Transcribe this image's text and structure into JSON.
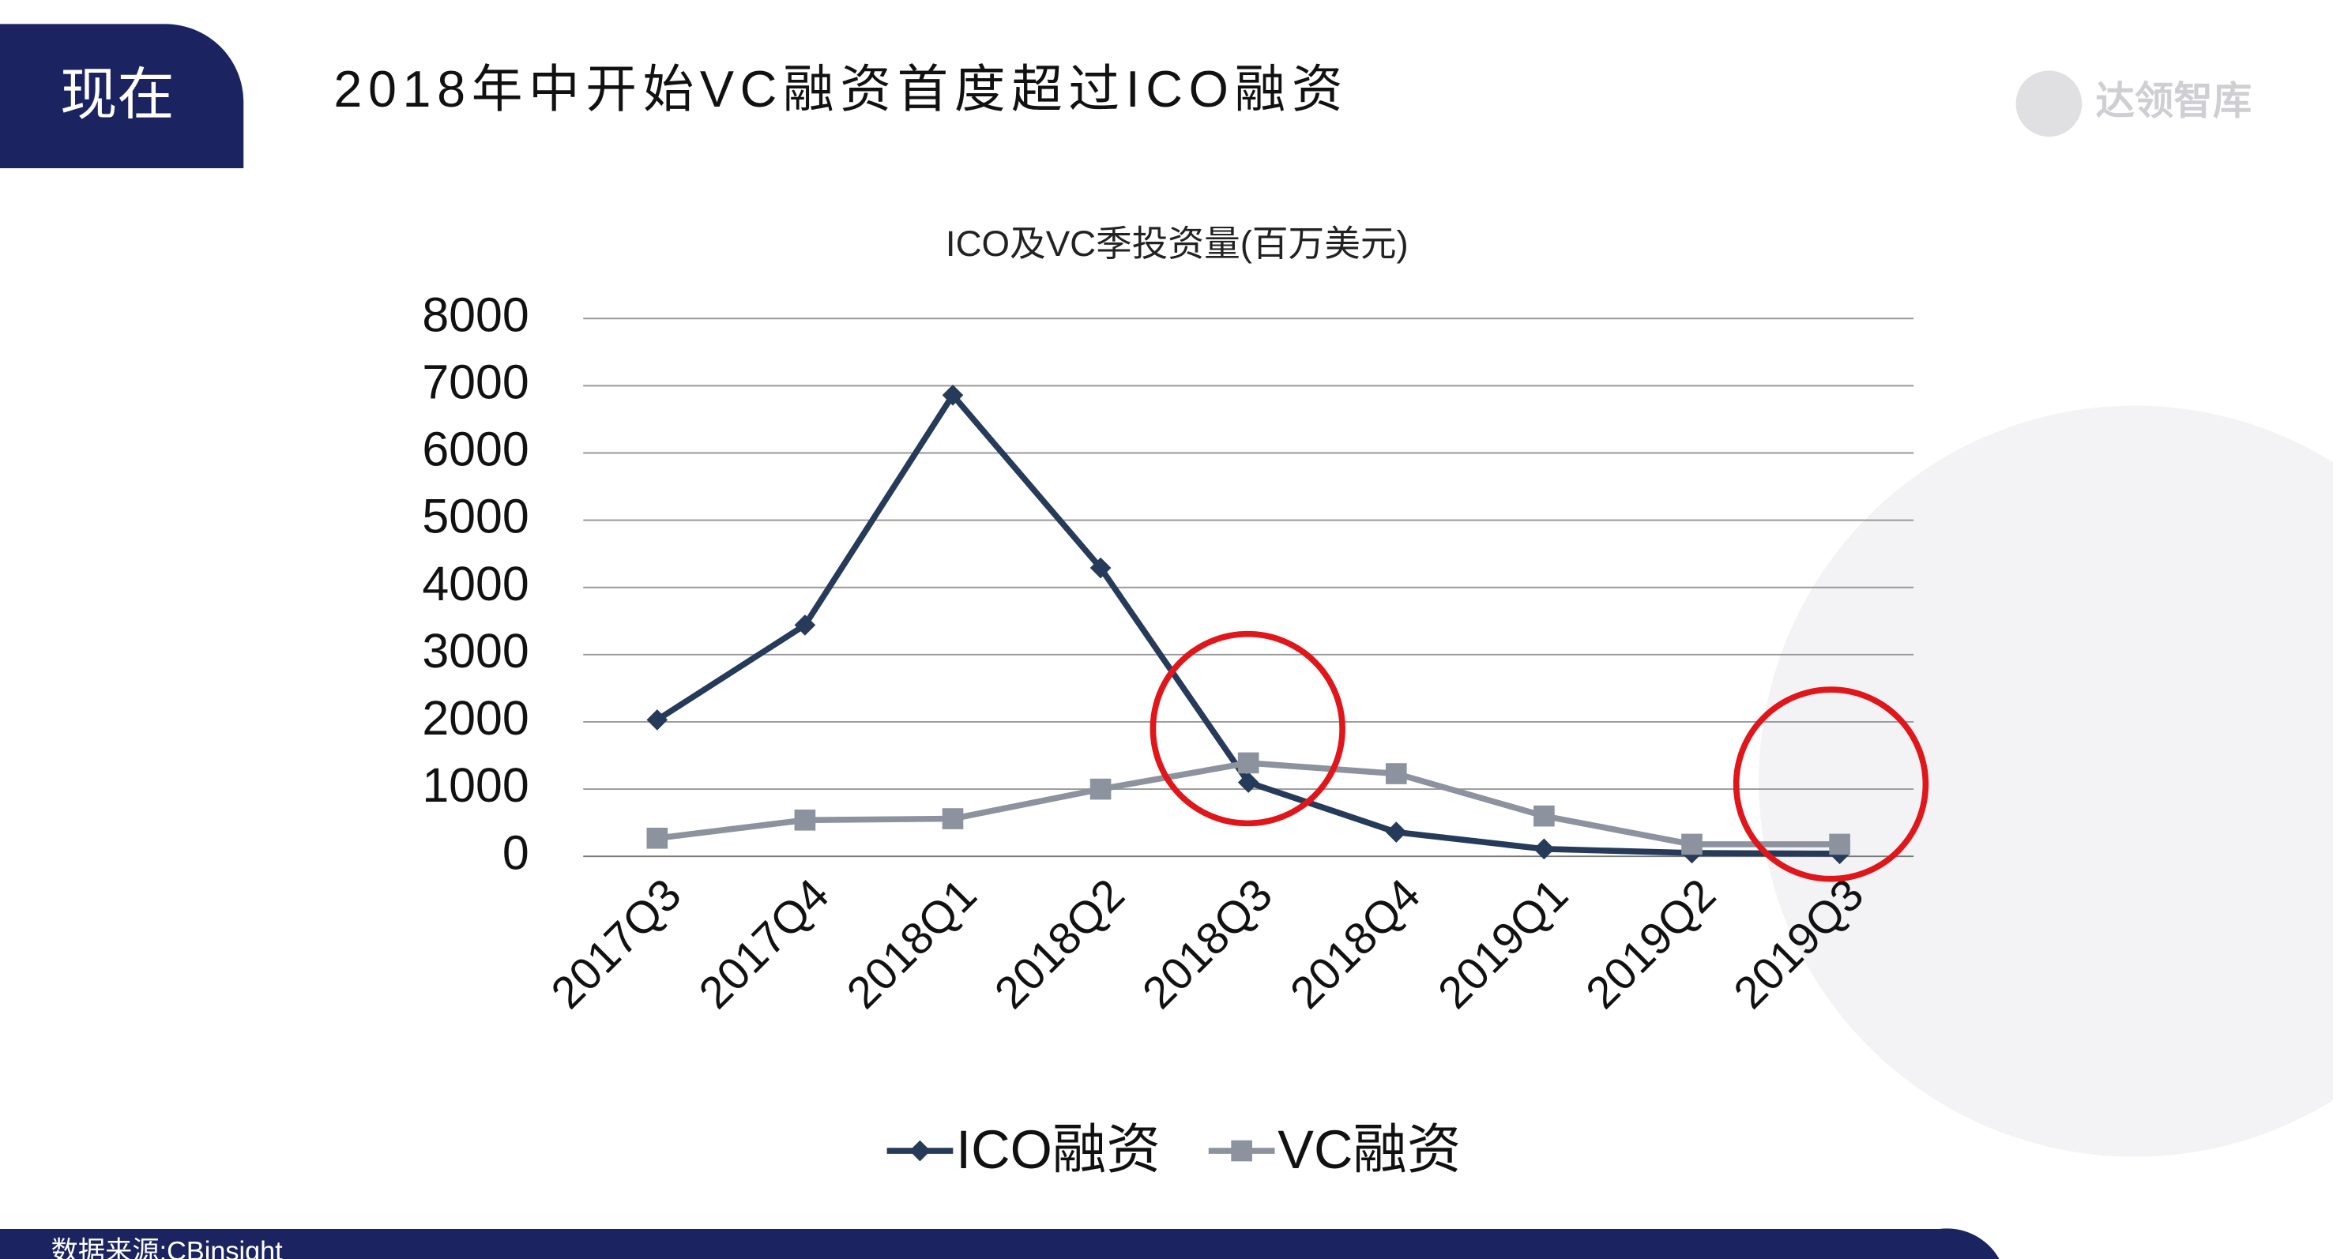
{
  "header": {
    "section": "现在",
    "title": "2018年中开始VC融资首度超过ICO融资",
    "logo": "达领智库"
  },
  "chart_data": {
    "type": "line",
    "title": "ICO及VC季投资量(百万美元)",
    "categories": [
      "2017Q3",
      "2017Q4",
      "2018Q1",
      "2018Q2",
      "2018Q3",
      "2018Q4",
      "2019Q1",
      "2019Q2",
      "2019Q3"
    ],
    "series": [
      {
        "name": "ICO融资",
        "color": "#263a5a",
        "values": [
          2030,
          3440,
          6860,
          4290,
          1100,
          360,
          110,
          50,
          40
        ]
      },
      {
        "name": "VC融资",
        "color": "#8c929e",
        "values": [
          270,
          540,
          560,
          1000,
          1390,
          1230,
          600,
          180,
          180
        ]
      }
    ],
    "ylim": [
      0,
      8000
    ],
    "yticks": [
      0,
      1000,
      2000,
      3000,
      4000,
      5000,
      6000,
      7000,
      8000
    ],
    "grid": true,
    "legend": "bottom"
  },
  "footer": {
    "source": "数据来源:CBinsight"
  }
}
